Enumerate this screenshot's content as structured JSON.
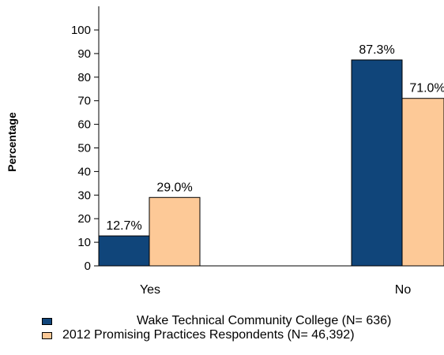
{
  "chart_data": {
    "type": "bar",
    "categories": [
      "Yes",
      "No"
    ],
    "series": [
      {
        "name": "Wake Technical Community College  (N= 636)",
        "values": [
          12.7,
          87.3
        ],
        "color": "#10457a"
      },
      {
        "name": "2012 Promising Practices Respondents (N= 46,392)",
        "values": [
          29.0,
          71.0
        ],
        "color": "#fdc997"
      }
    ],
    "value_labels": [
      [
        "12.7%",
        "87.3%"
      ],
      [
        "29.0%",
        "71.0%"
      ]
    ],
    "title": "",
    "xlabel": "",
    "ylabel": "Percentage",
    "ylim": [
      0,
      100
    ],
    "yticks": [
      "0",
      "10",
      "20",
      "30",
      "40",
      "50",
      "60",
      "70",
      "80",
      "90",
      "100"
    ],
    "grid": false,
    "legend_position": "bottom"
  }
}
